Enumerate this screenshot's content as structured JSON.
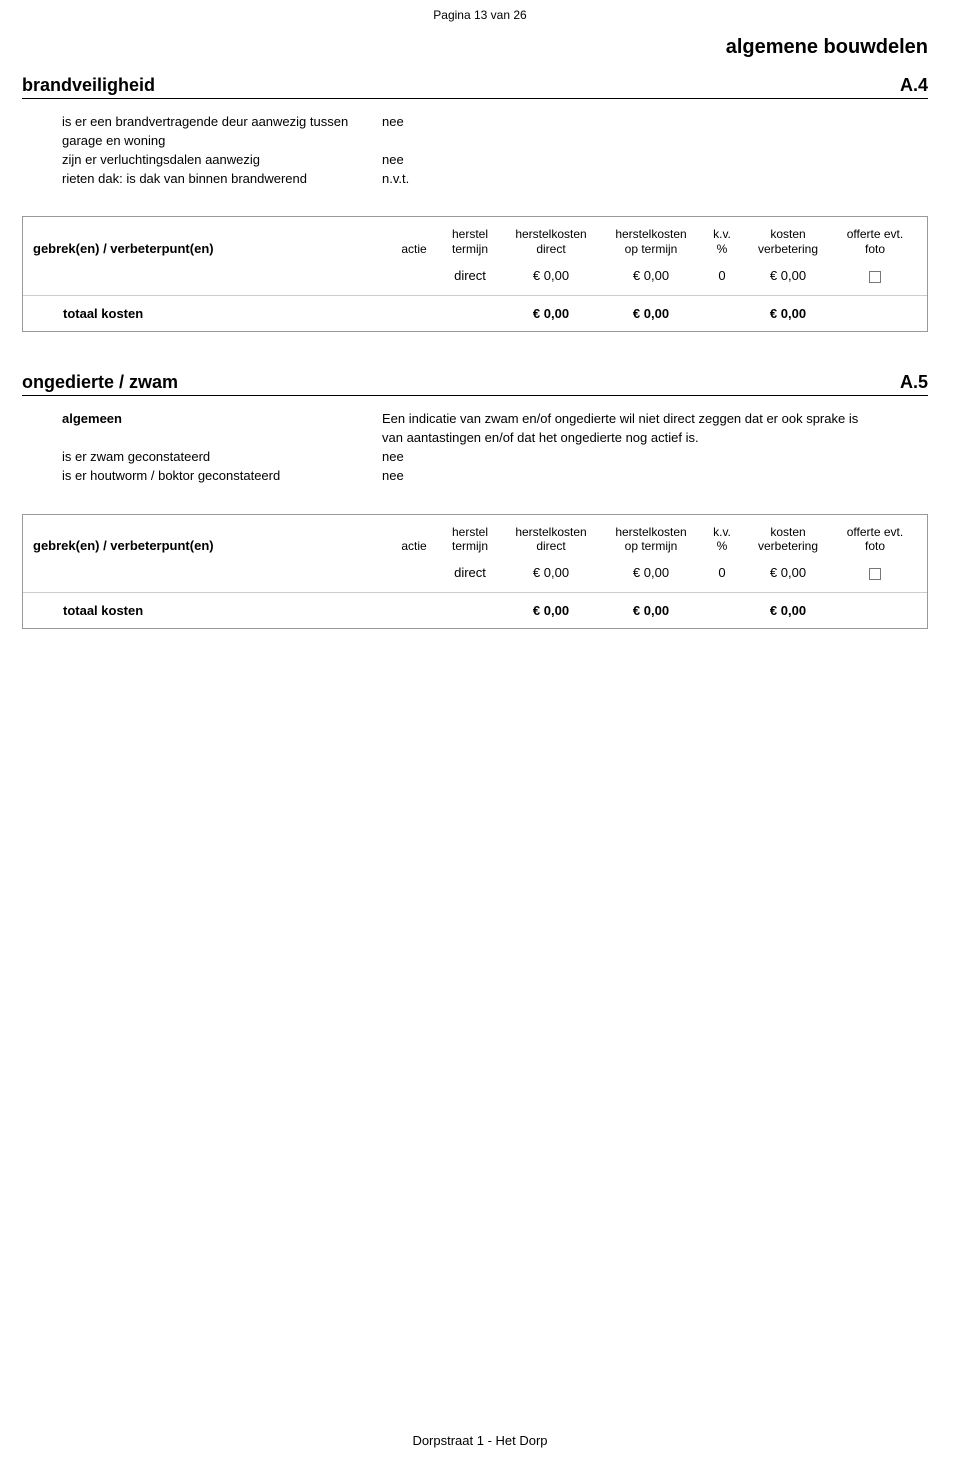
{
  "page": {
    "header": "Pagina 13 van  26",
    "footer": "Dorpstraat 1 - Het Dorp",
    "main_heading": "algemene bouwdelen"
  },
  "sections": {
    "a4": {
      "name": "brandveiligheid",
      "code": "A.4",
      "items": [
        {
          "label": "is er een brandvertragende deur aanwezig tussen garage en woning",
          "value": "nee"
        },
        {
          "label": "zijn er verluchtingsdalen aanwezig",
          "value": "nee"
        },
        {
          "label": "rieten dak: is dak van binnen brandwerend",
          "value": "n.v.t."
        }
      ]
    },
    "a5": {
      "name": "ongedierte / zwam",
      "code": "A.5",
      "items": [
        {
          "label": "algemeen",
          "value": "Een indicatie van zwam en/of ongedierte wil niet direct zeggen dat er ook sprake is van aantastingen en/of dat het ongedierte nog actief is.",
          "label_bold": true
        },
        {
          "label": "is er zwam geconstateerd",
          "value": "nee"
        },
        {
          "label": "is er houtworm / boktor geconstateerd",
          "value": "nee"
        }
      ]
    }
  },
  "cost_table": {
    "title": "gebrek(en) / verbeterpunt(en)",
    "headers": {
      "actie": "actie",
      "herstel_termijn_l1": "herstel",
      "herstel_termijn_l2": "termijn",
      "herstelkosten_direct_l1": "herstelkosten",
      "herstelkosten_direct_l2": "direct",
      "herstelkosten_termijn_l1": "herstelkosten",
      "herstelkosten_termijn_l2": "op termijn",
      "kv_l1": "k.v.",
      "kv_l2": "%",
      "kosten_verbetering_l1": "kosten",
      "kosten_verbetering_l2": "verbetering",
      "offerte_l1": "offerte evt.",
      "offerte_l2": "foto"
    },
    "row": {
      "herstel_termijn": "direct",
      "herstelkosten_direct": "€ 0,00",
      "herstelkosten_termijn": "€ 0,00",
      "kv": "0",
      "kosten_verbetering": "€ 0,00"
    },
    "total": {
      "label": "totaal kosten",
      "herstelkosten_direct": "€ 0,00",
      "herstelkosten_termijn": "€ 0,00",
      "kosten_verbetering": "€ 0,00"
    }
  }
}
